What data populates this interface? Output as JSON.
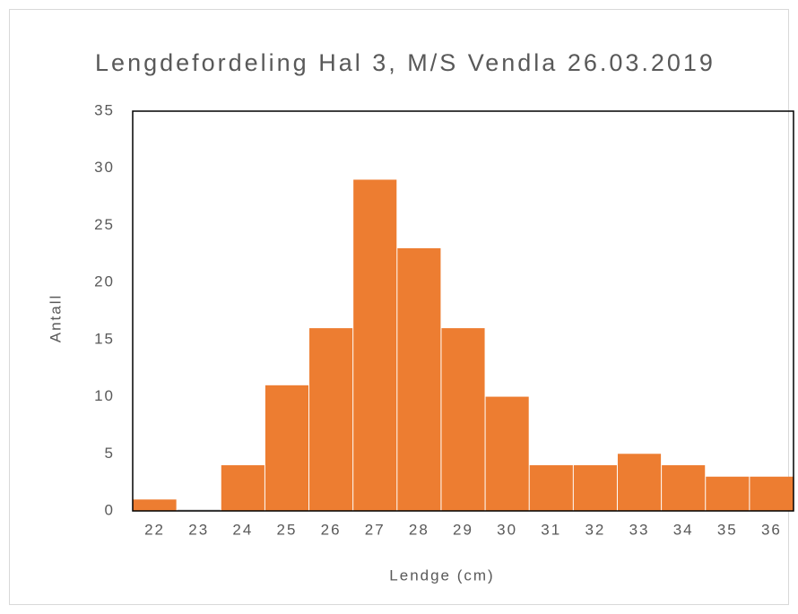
{
  "chart_data": {
    "type": "bar",
    "title": "Lengdefordeling Hal 3, M/S Vendla 26.03.2019",
    "x_label": "Lendge (cm)",
    "y_label": "Antall",
    "categories": [
      "22",
      "23",
      "24",
      "25",
      "26",
      "27",
      "28",
      "29",
      "30",
      "31",
      "32",
      "33",
      "34",
      "35",
      "36"
    ],
    "values": [
      1,
      0,
      4,
      11,
      16,
      29,
      23,
      16,
      10,
      4,
      4,
      5,
      4,
      3,
      3
    ],
    "color": "#ed7d31",
    "ylim": [
      0,
      35
    ],
    "yticks": [
      0,
      5,
      10,
      15,
      20,
      25,
      30,
      35
    ],
    "grid": false
  }
}
